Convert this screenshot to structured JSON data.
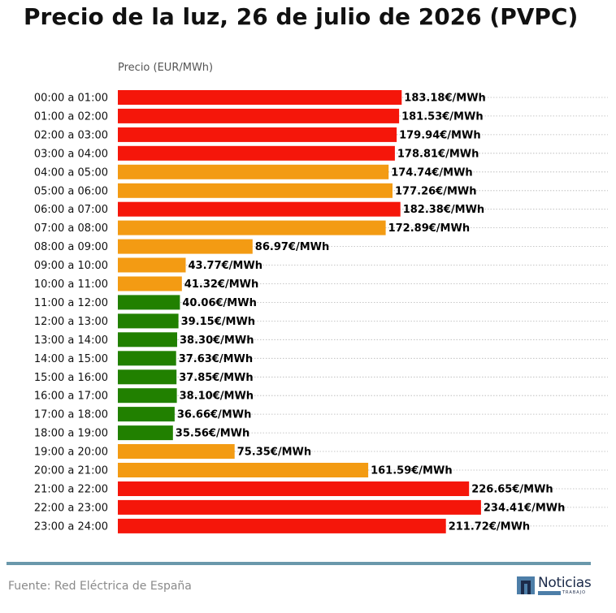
{
  "title": "Precio de la luz, 26 de julio de 2026 (PVPC)",
  "footer": {
    "source": "Fuente: Red Eléctrica de España",
    "logo_text": "Noticias",
    "logo_subtext": "TRABAJO"
  },
  "colors": {
    "high": "#f5160a",
    "mid": "#f39b13",
    "low": "#218000",
    "footer_rule": "#6a98ab"
  },
  "chart_data": {
    "type": "bar",
    "orientation": "horizontal",
    "title": "Precio de la luz, 26 de julio de 2026 (PVPC)",
    "ylabel": "Precio (EUR/MWh)",
    "grid": "dotted horizontal",
    "value_suffix": "€/MWh",
    "categories": [
      "00:00 a 01:00",
      "01:00 a 02:00",
      "02:00 a 03:00",
      "03:00 a 04:00",
      "04:00 a 05:00",
      "05:00 a 06:00",
      "06:00 a 07:00",
      "07:00 a 08:00",
      "08:00 a 09:00",
      "09:00 a 10:00",
      "10:00 a 11:00",
      "11:00 a 12:00",
      "12:00 a 13:00",
      "13:00 a 14:00",
      "14:00 a 15:00",
      "15:00 a 16:00",
      "16:00 a 17:00",
      "17:00 a 18:00",
      "18:00 a 19:00",
      "19:00 a 20:00",
      "20:00 a 21:00",
      "21:00 a 22:00",
      "22:00 a 23:00",
      "23:00 a 24:00"
    ],
    "values": [
      183.18,
      181.53,
      179.94,
      178.81,
      174.74,
      177.26,
      182.38,
      172.89,
      86.97,
      43.77,
      41.32,
      40.06,
      39.15,
      38.3,
      37.63,
      37.85,
      38.1,
      36.66,
      35.56,
      75.35,
      161.59,
      226.65,
      234.41,
      211.72
    ],
    "value_labels": [
      "183.18€/MWh",
      "181.53€/MWh",
      "179.94€/MWh",
      "178.81€/MWh",
      "174.74€/MWh",
      "177.26€/MWh",
      "182.38€/MWh",
      "172.89€/MWh",
      "86.97€/MWh",
      "43.77€/MWh",
      "41.32€/MWh",
      "40.06€/MWh",
      "39.15€/MWh",
      "38.30€/MWh",
      "37.63€/MWh",
      "37.85€/MWh",
      "38.10€/MWh",
      "36.66€/MWh",
      "35.56€/MWh",
      "75.35€/MWh",
      "161.59€/MWh",
      "226.65€/MWh",
      "234.41€/MWh",
      "211.72€/MWh"
    ],
    "levels": [
      "high",
      "high",
      "high",
      "high",
      "mid",
      "mid",
      "high",
      "mid",
      "mid",
      "mid",
      "mid",
      "low",
      "low",
      "low",
      "low",
      "low",
      "low",
      "low",
      "low",
      "mid",
      "mid",
      "high",
      "high",
      "high"
    ]
  }
}
